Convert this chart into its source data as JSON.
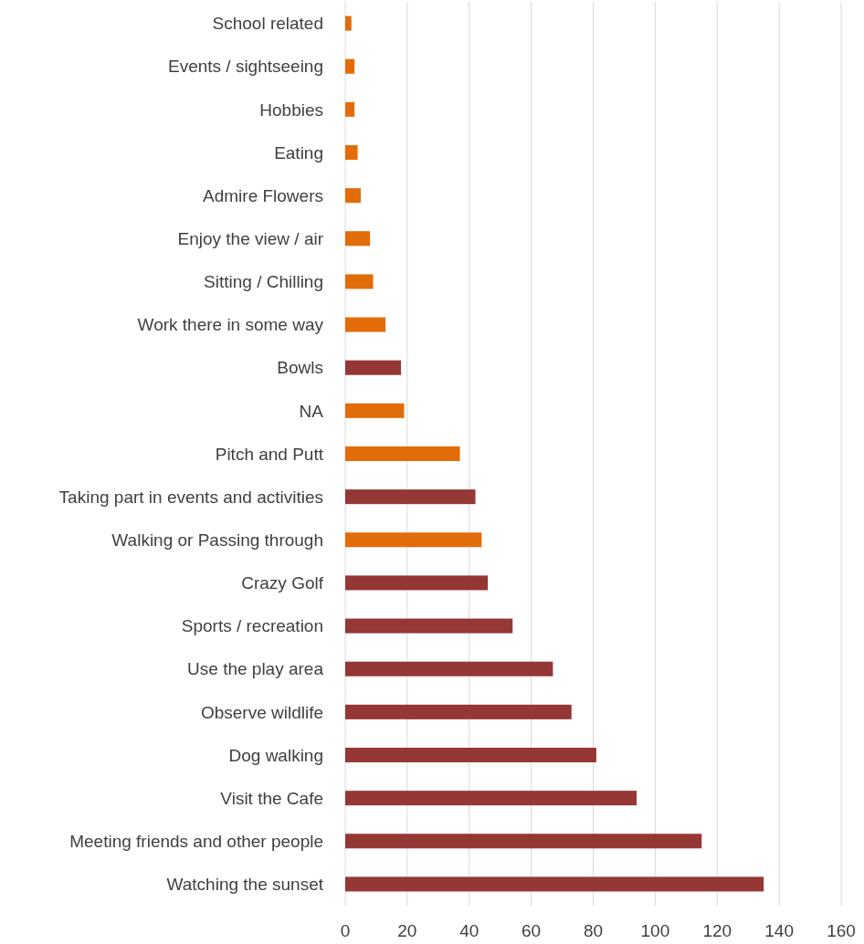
{
  "chart_data": {
    "type": "bar",
    "orientation": "horizontal",
    "categories": [
      "School related",
      "Events / sightseeing",
      "Hobbies",
      "Eating",
      "Admire Flowers",
      "Enjoy the view / air",
      "Sitting / Chilling",
      "Work there in some way",
      "Bowls",
      "NA",
      "Pitch and Putt",
      "Taking part in events and activities",
      "Walking or Passing through",
      "Crazy Golf",
      "Sports / recreation",
      "Use the play area",
      "Observe wildlife",
      "Dog walking",
      "Visit the Cafe",
      "Meeting friends and other people",
      "Watching the sunset"
    ],
    "values": [
      2,
      3,
      3,
      4,
      5,
      8,
      9,
      13,
      18,
      19,
      37,
      42,
      44,
      46,
      54,
      67,
      73,
      81,
      94,
      115,
      135
    ],
    "colors": [
      "#e36c0a",
      "#e36c0a",
      "#e36c0a",
      "#e36c0a",
      "#e36c0a",
      "#e36c0a",
      "#e36c0a",
      "#e36c0a",
      "#953735",
      "#e36c0a",
      "#e36c0a",
      "#953735",
      "#e36c0a",
      "#953735",
      "#953735",
      "#953735",
      "#953735",
      "#953735",
      "#953735",
      "#953735",
      "#953735"
    ],
    "xlim": [
      0,
      160
    ],
    "xticks": [
      0,
      20,
      40,
      60,
      80,
      100,
      120,
      140,
      160
    ],
    "grid": "x"
  }
}
